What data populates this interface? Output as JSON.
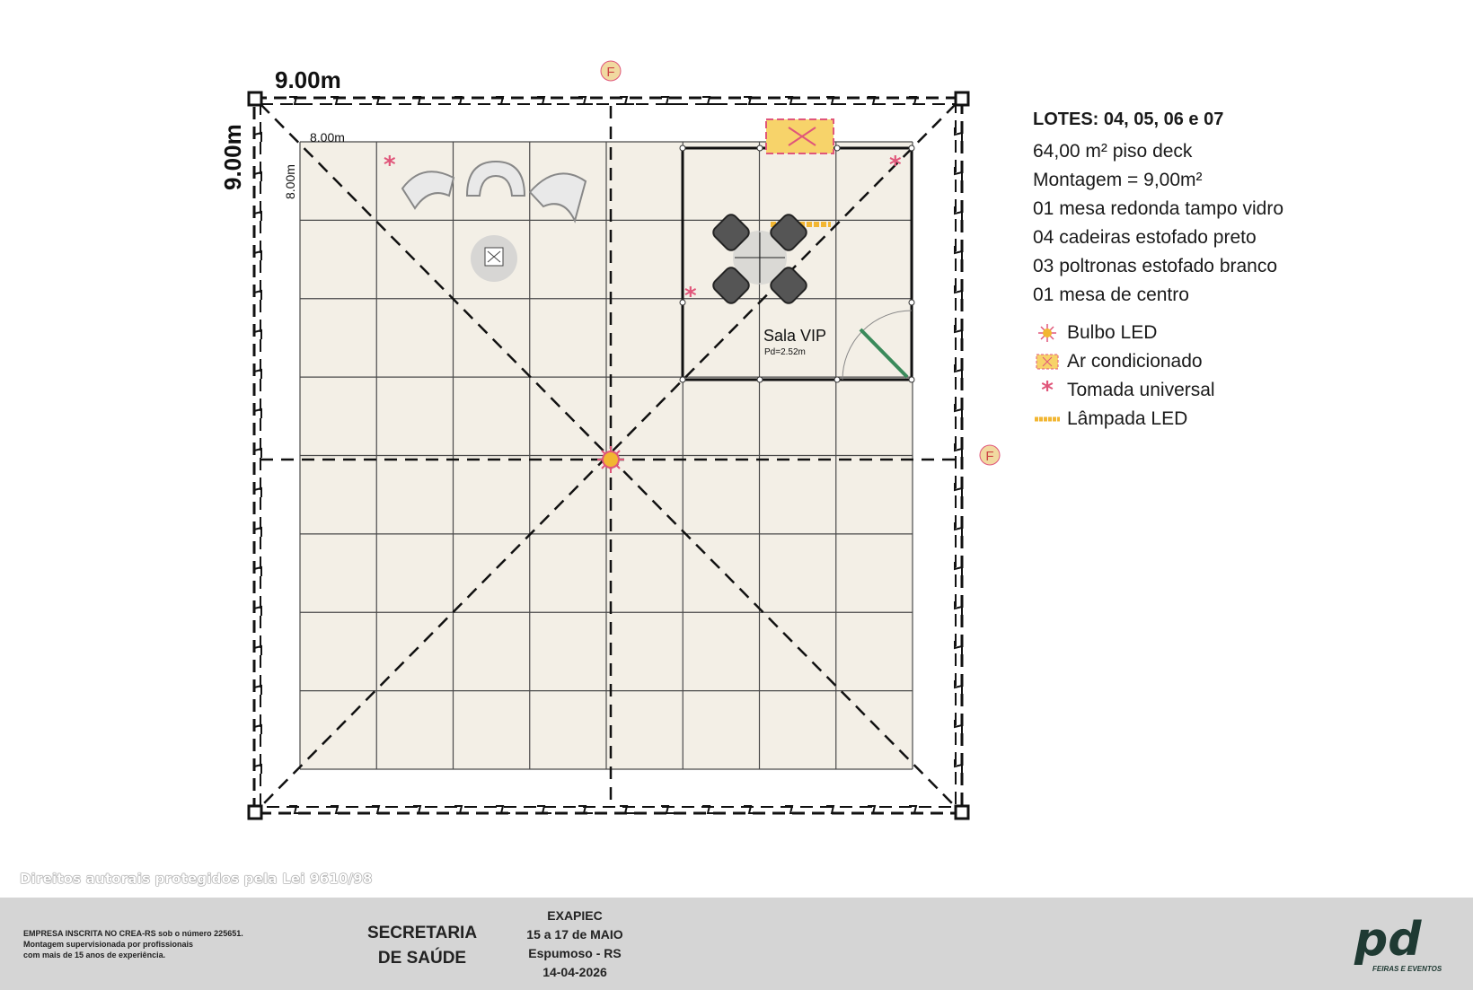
{
  "dimensions": {
    "outer_width": "9.00m",
    "outer_height": "9.00m",
    "inner_width": "8.00m",
    "inner_height": "8.00m"
  },
  "markers": {
    "f_label": "F"
  },
  "room": {
    "name": "Sala VIP",
    "height_label": "Pd=2.52m"
  },
  "legend": {
    "title": "LOTES: 04, 05, 06 e 07",
    "lines": [
      "64,00 m² piso deck",
      "Montagem = 9,00m²",
      "01 mesa redonda tampo vidro",
      "04 cadeiras estofado preto",
      "03 poltronas estofado branco",
      "01 mesa de centro"
    ],
    "symbols": [
      {
        "icon": "bulb-led-icon",
        "label": "Bulbo LED"
      },
      {
        "icon": "air-conditioner-icon",
        "label": "Ar condicionado"
      },
      {
        "icon": "outlet-icon",
        "label": "Tomada universal"
      },
      {
        "icon": "led-lamp-icon",
        "label": "Lâmpada LED"
      }
    ]
  },
  "footer": {
    "copyright": "Direitos autorais protegidos pela Lei 9610/98",
    "company_lines": [
      "EMPRESA INSCRITA NO CREA-RS sob o número 225651.",
      "Montagem supervisionada por profissionais",
      "com mais de 15 anos de experiência."
    ],
    "client_lines": [
      "SECRETARIA",
      "DE SAÚDE"
    ],
    "event_lines": [
      "EXAPIEC",
      "15 a 17 de MAIO",
      "Espumoso - RS",
      "14-04-2026"
    ],
    "logo_text": "pd",
    "logo_subtext": "FEIRAS E EVENTOS"
  },
  "colors": {
    "floor": "#f3efe6",
    "grid": "#4a4a4a",
    "outlet": "#e0567a",
    "led": "#f2b632",
    "ac": "#f7d36a",
    "door": "#3a8a5a",
    "marker": "#f1d9a0",
    "footer_bg": "#d5d5d5"
  }
}
